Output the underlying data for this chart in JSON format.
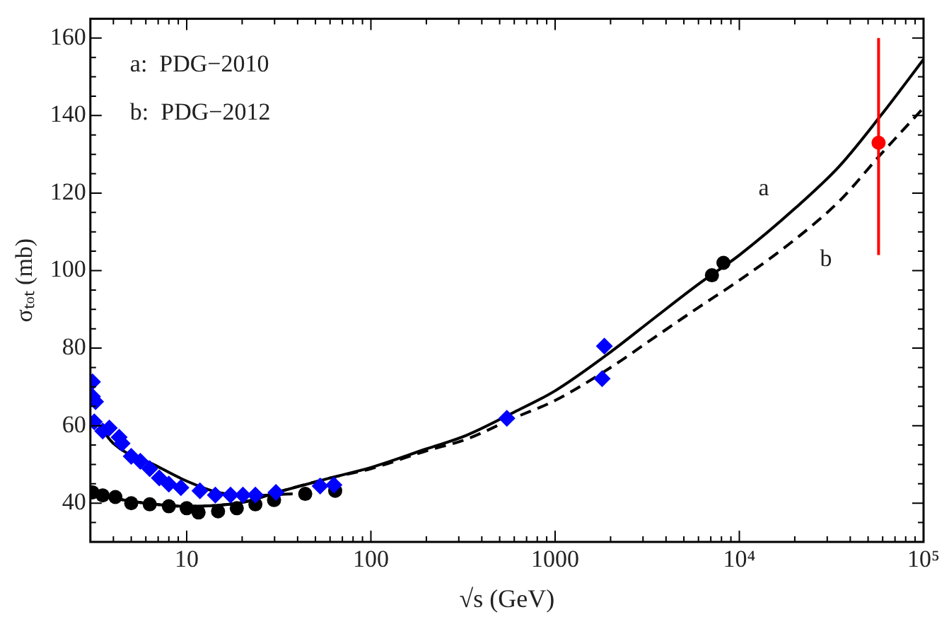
{
  "chart_data": {
    "type": "scatter",
    "xlabel": "√s (GeV)",
    "ylabel": "σₜₒₜ (mb)",
    "log": "x",
    "grid": false,
    "legend": false,
    "xlim": [
      3,
      100000
    ],
    "ylim": [
      30,
      165
    ],
    "xticks": [
      {
        "value": 4,
        "label": null
      },
      {
        "value": 5,
        "label": null
      },
      {
        "value": 6,
        "label": null
      },
      {
        "value": 7,
        "label": null
      },
      {
        "value": 8,
        "label": null
      },
      {
        "value": 9,
        "label": null
      },
      10,
      {
        "value": 20,
        "label": null
      },
      {
        "value": 30,
        "label": null
      },
      {
        "value": 40,
        "label": null
      },
      {
        "value": 50,
        "label": null
      },
      {
        "value": 60,
        "label": null
      },
      {
        "value": 70,
        "label": null
      },
      {
        "value": 80,
        "label": null
      },
      {
        "value": 90,
        "label": null
      },
      100,
      {
        "value": 200,
        "label": null
      },
      {
        "value": 300,
        "label": null
      },
      {
        "value": 400,
        "label": null
      },
      {
        "value": 500,
        "label": null
      },
      {
        "value": 600,
        "label": null
      },
      {
        "value": 700,
        "label": null
      },
      {
        "value": 800,
        "label": null
      },
      {
        "value": 900,
        "label": null
      },
      1000,
      {
        "value": 2000,
        "label": null
      },
      {
        "value": 3000,
        "label": null
      },
      {
        "value": 4000,
        "label": null
      },
      {
        "value": 5000,
        "label": null
      },
      {
        "value": 6000,
        "label": null
      },
      {
        "value": 7000,
        "label": null
      },
      {
        "value": 8000,
        "label": null
      },
      {
        "value": 9000,
        "label": null
      },
      {
        "value": 10000,
        "label": "10⁴"
      },
      {
        "value": 20000,
        "label": null
      },
      {
        "value": 30000,
        "label": null
      },
      {
        "value": 40000,
        "label": null
      },
      {
        "value": 50000,
        "label": null
      },
      {
        "value": 60000,
        "label": null
      },
      {
        "value": 70000,
        "label": null
      },
      {
        "value": 80000,
        "label": null
      },
      {
        "value": 90000,
        "label": null
      },
      {
        "value": 100000,
        "label": "10⁵"
      }
    ],
    "yticks": [
      {
        "value": 35,
        "label": null
      },
      40,
      {
        "value": 45,
        "label": null
      },
      {
        "value": 50,
        "label": null
      },
      {
        "value": 55,
        "label": null
      },
      60,
      {
        "value": 65,
        "label": null
      },
      {
        "value": 70,
        "label": null
      },
      {
        "value": 75,
        "label": null
      },
      80,
      {
        "value": 85,
        "label": null
      },
      {
        "value": 90,
        "label": null
      },
      {
        "value": 95,
        "label": null
      },
      100,
      {
        "value": 105,
        "label": null
      },
      {
        "value": 110,
        "label": null
      },
      {
        "value": 115,
        "label": null
      },
      120,
      {
        "value": 125,
        "label": null
      },
      {
        "value": 130,
        "label": null
      },
      {
        "value": 135,
        "label": null
      },
      140,
      {
        "value": 145,
        "label": null
      },
      {
        "value": 150,
        "label": null
      },
      {
        "value": 155,
        "label": null
      },
      160
    ],
    "annotations": [
      "a:  PDG−2010",
      "b:  PDG−2012"
    ],
    "series": [
      {
        "type": "line",
        "color": "#000000",
        "marker": "none",
        "line_style": "solid",
        "x": [
          3.15,
          4,
          6.8,
          10,
          14.8,
          23.6,
          37.6
        ],
        "values": [
          61.9,
          55.4,
          49.7,
          45.7,
          42.8,
          42,
          42.4
        ]
      },
      {
        "type": "line",
        "name": "a",
        "color": "#000000",
        "marker": "none",
        "line_style": "solid",
        "x": [
          3.15,
          5,
          10,
          20,
          32,
          60,
          100,
          200,
          330,
          600,
          1000,
          2000,
          3400,
          6000,
          10000,
          20000,
          35000,
          58600,
          100000
        ],
        "values": [
          42.4,
          40.5,
          39.2,
          40.2,
          43,
          46.5,
          49.2,
          54,
          57.5,
          63.5,
          69,
          79,
          87.5,
          96.5,
          104,
          116,
          127,
          140,
          154.5
        ]
      },
      {
        "type": "line",
        "name": "b",
        "color": "#000000",
        "marker": "none",
        "line_style": "dashed",
        "x": [
          3.15,
          5,
          10,
          20,
          32,
          60,
          100,
          200,
          330,
          600,
          1000,
          2000,
          3400,
          6000,
          10000,
          20000,
          35000,
          58600,
          100000
        ],
        "values": [
          42.4,
          40.5,
          39.2,
          40.2,
          43,
          46.5,
          48.9,
          53.5,
          56.5,
          62,
          66.5,
          75,
          82.5,
          90.5,
          97.5,
          108,
          118,
          130,
          142
        ]
      },
      {
        "color": "#0000ff",
        "marker": "diamond",
        "x": [
          3.08,
          3.08,
          3.2,
          3.15,
          3.5,
          3.8,
          4.3,
          4.46,
          5,
          5.6,
          6.3,
          7.1,
          8,
          9.3,
          11.8,
          14.3,
          17.3,
          20.2,
          23.6,
          30.5,
          53,
          63,
          547,
          1850,
          1800
        ],
        "values": [
          71.3,
          67.5,
          66.2,
          61,
          58.6,
          59.4,
          57,
          55.4,
          52.1,
          50.8,
          48.9,
          46.5,
          44.9,
          44,
          43.2,
          42.1,
          42.1,
          42.1,
          42.1,
          42.8,
          44.4,
          44.7,
          61.9,
          80.5,
          72.1
        ]
      },
      {
        "color": "#000000",
        "marker": "circle",
        "x": [
          3.08,
          3.5,
          4.1,
          5,
          6.3,
          8,
          10,
          11.6,
          14.8,
          18.7,
          23.6,
          29.8,
          44,
          64,
          7100,
          8200
        ],
        "values": [
          42.8,
          42,
          41.6,
          40,
          39.7,
          39.2,
          38.7,
          37.6,
          37.9,
          38.7,
          39.7,
          40.8,
          42.4,
          43.2,
          98.8,
          102
        ]
      },
      {
        "color": "#ff0000",
        "marker": "circle",
        "x": [
          57000
        ],
        "values": [
          133
        ],
        "errors": [
          [
            104,
            160
          ]
        ]
      }
    ]
  }
}
